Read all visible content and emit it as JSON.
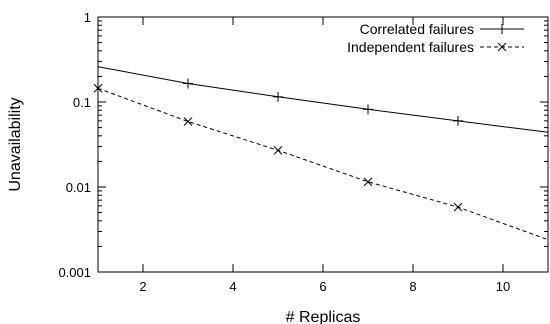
{
  "chart_data": {
    "type": "line",
    "title": "",
    "xlabel": "# Replicas",
    "ylabel": "Unavailability",
    "xlim": [
      1,
      11
    ],
    "ylim": [
      0.001,
      1
    ],
    "yscale": "log",
    "grid": false,
    "legend_position": "top-right",
    "x_ticks": [
      2,
      4,
      6,
      8,
      10
    ],
    "x_tick_labels": [
      "2",
      "4",
      "6",
      "8",
      "10"
    ],
    "y_ticks": [
      0.001,
      0.01,
      0.1,
      1
    ],
    "y_tick_labels": [
      "0.001",
      "0.01",
      "0.1",
      "1"
    ],
    "series": [
      {
        "name": "Correlated failures",
        "style": "solid",
        "marker": "plus",
        "color": "#000000",
        "x": [
          1,
          3,
          5,
          7,
          9,
          11
        ],
        "y": [
          0.26,
          0.165,
          0.115,
          0.082,
          0.06,
          0.044
        ],
        "markers_x": [
          3,
          5,
          7,
          9
        ]
      },
      {
        "name": "Independent failures",
        "style": "dashed",
        "marker": "cross",
        "color": "#000000",
        "x": [
          1,
          3,
          5,
          7,
          9,
          11
        ],
        "y": [
          0.145,
          0.059,
          0.027,
          0.0115,
          0.0058,
          0.0024
        ],
        "markers_x": [
          1,
          3,
          5,
          7,
          9
        ]
      }
    ]
  }
}
